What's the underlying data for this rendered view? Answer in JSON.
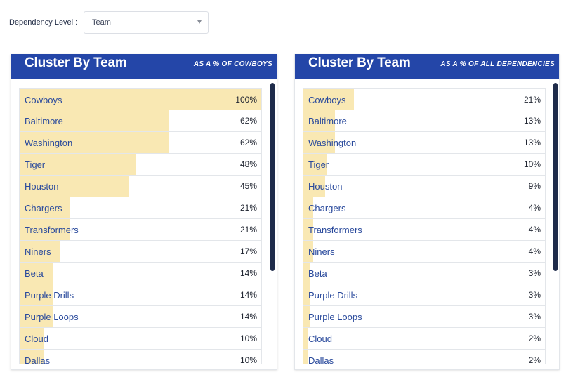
{
  "filter": {
    "label": "Dependency Level :",
    "selected": "Team"
  },
  "colors": {
    "header": "#2446a8",
    "bar": "#f9e8b3",
    "label": "#2a4a9c",
    "scrollbar": "#1e2b4a"
  },
  "panels": [
    {
      "title": "Cluster By Team",
      "subtitle": "AS A % OF COWBOYS",
      "rows": [
        {
          "label": "Cowboys",
          "value": "100%",
          "pct": 100
        },
        {
          "label": "Baltimore",
          "value": "62%",
          "pct": 62
        },
        {
          "label": "Washington",
          "value": "62%",
          "pct": 62
        },
        {
          "label": "Tiger",
          "value": "48%",
          "pct": 48
        },
        {
          "label": "Houston",
          "value": "45%",
          "pct": 45
        },
        {
          "label": "Chargers",
          "value": "21%",
          "pct": 21
        },
        {
          "label": "Transformers",
          "value": "21%",
          "pct": 21
        },
        {
          "label": "Niners",
          "value": "17%",
          "pct": 17
        },
        {
          "label": "Beta",
          "value": "14%",
          "pct": 14
        },
        {
          "label": "Purple Drills",
          "value": "14%",
          "pct": 14
        },
        {
          "label": "Purple Loops",
          "value": "14%",
          "pct": 14
        },
        {
          "label": "Cloud",
          "value": "10%",
          "pct": 10
        },
        {
          "label": "Dallas",
          "value": "10%",
          "pct": 10
        }
      ]
    },
    {
      "title": "Cluster By Team",
      "subtitle": "AS A % OF ALL DEPENDENCIES",
      "rows": [
        {
          "label": "Cowboys",
          "value": "21%",
          "pct": 21
        },
        {
          "label": "Baltimore",
          "value": "13%",
          "pct": 13
        },
        {
          "label": "Washington",
          "value": "13%",
          "pct": 13
        },
        {
          "label": "Tiger",
          "value": "10%",
          "pct": 10
        },
        {
          "label": "Houston",
          "value": "9%",
          "pct": 9
        },
        {
          "label": "Chargers",
          "value": "4%",
          "pct": 4
        },
        {
          "label": "Transformers",
          "value": "4%",
          "pct": 4
        },
        {
          "label": "Niners",
          "value": "4%",
          "pct": 4
        },
        {
          "label": "Beta",
          "value": "3%",
          "pct": 3
        },
        {
          "label": "Purple Drills",
          "value": "3%",
          "pct": 3
        },
        {
          "label": "Purple Loops",
          "value": "3%",
          "pct": 3
        },
        {
          "label": "Cloud",
          "value": "2%",
          "pct": 2
        },
        {
          "label": "Dallas",
          "value": "2%",
          "pct": 2
        }
      ]
    }
  ]
}
